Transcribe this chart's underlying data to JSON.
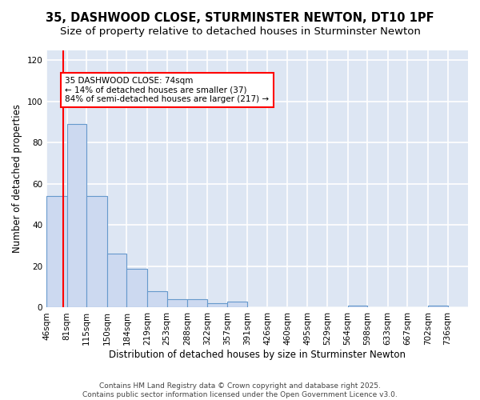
{
  "title": "35, DASHWOOD CLOSE, STURMINSTER NEWTON, DT10 1PF",
  "subtitle": "Size of property relative to detached houses in Sturminster Newton",
  "xlabel": "Distribution of detached houses by size in Sturminster Newton",
  "ylabel": "Number of detached properties",
  "bins": [
    46,
    81,
    115,
    150,
    184,
    219,
    253,
    288,
    322,
    357,
    391,
    426,
    460,
    495,
    529,
    564,
    598,
    633,
    667,
    702,
    736
  ],
  "counts": [
    54,
    89,
    54,
    26,
    19,
    8,
    4,
    4,
    2,
    3,
    0,
    0,
    0,
    0,
    0,
    1,
    0,
    0,
    0,
    1,
    0
  ],
  "bar_color": "#ccd9f0",
  "bar_edge_color": "#6699cc",
  "red_line_x": 74,
  "annotation_text": "35 DASHWOOD CLOSE: 74sqm\n← 14% of detached houses are smaller (37)\n84% of semi-detached houses are larger (217) →",
  "annotation_box_color": "white",
  "annotation_box_edge": "red",
  "ylim": [
    0,
    125
  ],
  "yticks": [
    0,
    20,
    40,
    60,
    80,
    100,
    120
  ],
  "background_color": "#dde6f3",
  "grid_color": "white",
  "footnote": "Contains HM Land Registry data © Crown copyright and database right 2025.\nContains public sector information licensed under the Open Government Licence v3.0.",
  "title_fontsize": 10.5,
  "subtitle_fontsize": 9.5,
  "xlabel_fontsize": 8.5,
  "ylabel_fontsize": 8.5,
  "tick_fontsize": 7.5,
  "annot_fontsize": 7.5,
  "footnote_fontsize": 6.5,
  "bin_width": 35
}
